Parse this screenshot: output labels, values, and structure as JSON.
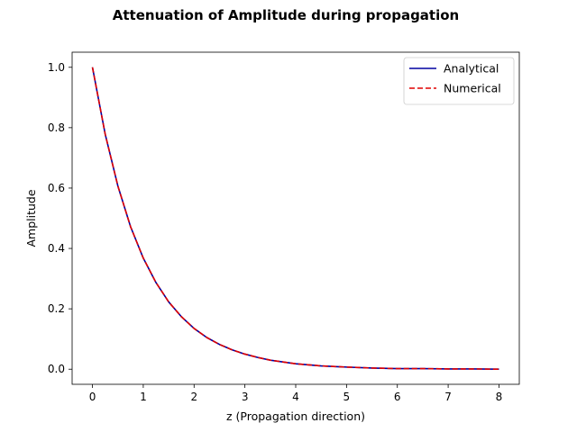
{
  "chart_data": {
    "type": "line",
    "title": "Attenuation of Amplitude during propagation",
    "xlabel": "z (Propagation direction)",
    "ylabel": "Amplitude",
    "xlim": [
      -0.4,
      8.4
    ],
    "ylim": [
      -0.05,
      1.05
    ],
    "xticks": [
      0,
      1,
      2,
      3,
      4,
      5,
      6,
      7,
      8
    ],
    "yticks": [
      0.0,
      0.2,
      0.4,
      0.6,
      0.8,
      1.0
    ],
    "grid": false,
    "legend_position": "top-right",
    "x": [
      0,
      0.25,
      0.5,
      0.75,
      1,
      1.25,
      1.5,
      1.75,
      2,
      2.25,
      2.5,
      2.75,
      3,
      3.25,
      3.5,
      3.75,
      4,
      4.5,
      5,
      5.5,
      6,
      6.5,
      7,
      7.5,
      8
    ],
    "series": [
      {
        "name": "Analytical",
        "color": "#0000a0",
        "style": "solid",
        "values": [
          1.0,
          0.779,
          0.607,
          0.472,
          0.368,
          0.287,
          0.223,
          0.174,
          0.135,
          0.105,
          0.082,
          0.064,
          0.05,
          0.039,
          0.03,
          0.024,
          0.018,
          0.011,
          0.007,
          0.004,
          0.002,
          0.002,
          0.001,
          0.001,
          0.0
        ]
      },
      {
        "name": "Numerical",
        "color": "#e00000",
        "style": "dashed",
        "values": [
          1.0,
          0.779,
          0.607,
          0.472,
          0.368,
          0.287,
          0.223,
          0.174,
          0.135,
          0.105,
          0.082,
          0.064,
          0.05,
          0.039,
          0.03,
          0.024,
          0.018,
          0.011,
          0.007,
          0.004,
          0.002,
          0.002,
          0.001,
          0.001,
          0.0
        ]
      }
    ]
  }
}
